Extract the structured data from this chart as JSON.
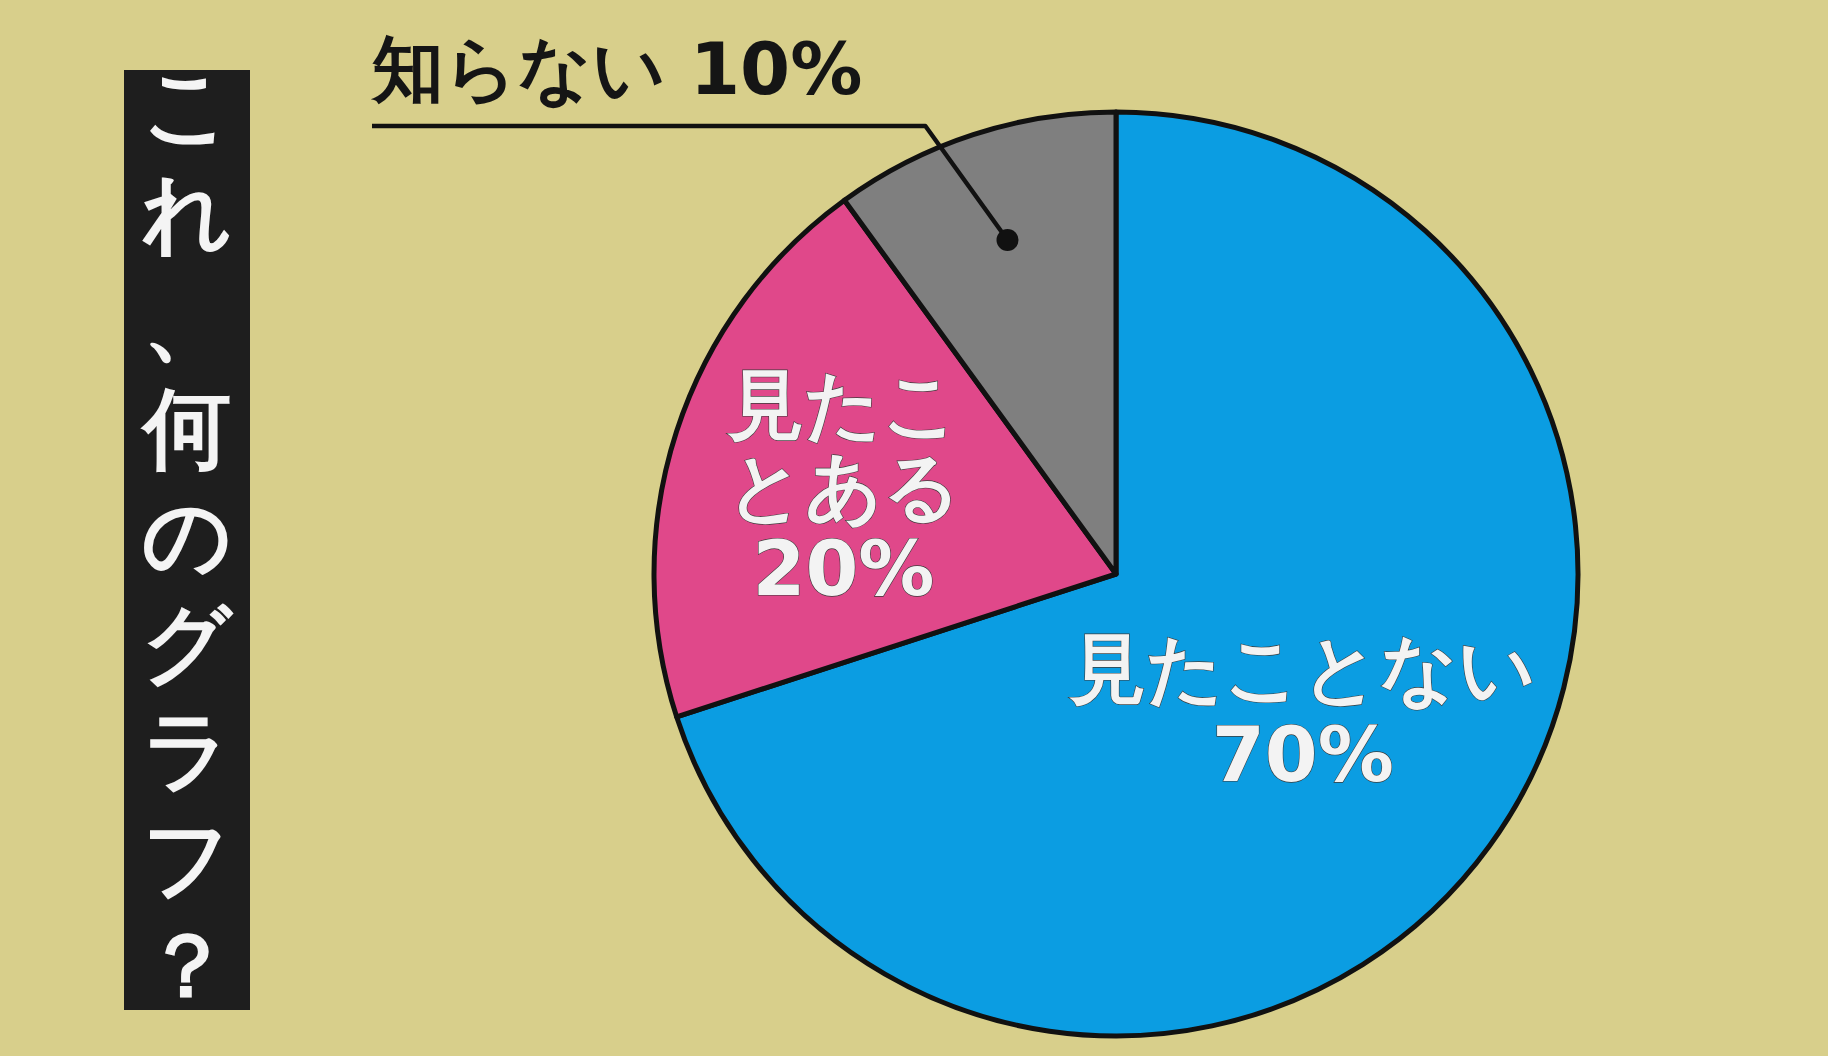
{
  "chart_data": {
    "type": "pie",
    "title": "これ、何のグラフ？",
    "categories": [
      "見たことない",
      "見たことある",
      "知らない"
    ],
    "values": [
      70,
      20,
      10
    ],
    "value_labels": [
      "70%",
      "20%",
      "10%"
    ],
    "colors": [
      "#0b9de2",
      "#e0488a",
      "#7f7f7f"
    ]
  }
}
